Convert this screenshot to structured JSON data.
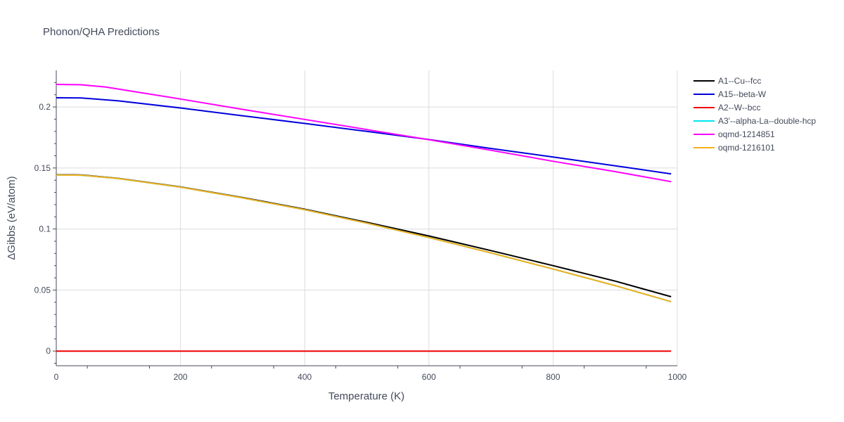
{
  "chart_data": {
    "type": "line",
    "title": "Phonon/QHA Predictions",
    "xlabel": "Temperature (K)",
    "ylabel": "ΔGibbs (eV/atom)",
    "xlim": [
      0,
      1000
    ],
    "ylim": [
      -0.012,
      0.23
    ],
    "x_ticks": [
      0,
      200,
      400,
      600,
      800,
      1000
    ],
    "y_ticks": [
      0,
      0.05,
      0.1,
      0.15,
      0.2
    ],
    "x_tick_labels": [
      "0",
      "200",
      "400",
      "600",
      "800",
      "1000"
    ],
    "y_tick_labels": [
      "0",
      "0.05",
      "0.1",
      "0.15",
      "0.2"
    ],
    "grid": true,
    "legend_position": "right",
    "series": [
      {
        "name": "A1--Cu--fcc",
        "color": "#000000",
        "x": [
          0,
          40,
          100,
          200,
          300,
          400,
          500,
          600,
          700,
          800,
          900,
          990
        ],
        "y": [
          0.1445,
          0.1443,
          0.1415,
          0.1345,
          0.1258,
          0.1162,
          0.1055,
          0.0943,
          0.0823,
          0.07,
          0.0573,
          0.0445
        ]
      },
      {
        "name": "A15--beta-W",
        "color": "#0000dd",
        "x": [
          0,
          40,
          100,
          200,
          300,
          400,
          500,
          600,
          700,
          800,
          900,
          990
        ],
        "y": [
          0.2075,
          0.2074,
          0.205,
          0.1992,
          0.1928,
          0.1865,
          0.18,
          0.1733,
          0.166,
          0.159,
          0.1518,
          0.1452
        ]
      },
      {
        "name": "A2--W--bcc",
        "color": "#ee0000",
        "x": [
          0,
          990
        ],
        "y": [
          0,
          0
        ]
      },
      {
        "name": "A3'--alpha-La--double-hcp",
        "color": "#00e5ee",
        "x": [
          0,
          40,
          100,
          200,
          300,
          400,
          500,
          600,
          700,
          800,
          900,
          990
        ],
        "y": [
          0.1443,
          0.1441,
          0.1413,
          0.1343,
          0.1255,
          0.1158,
          0.1048,
          0.093,
          0.0804,
          0.0672,
          0.0536,
          0.0405
        ]
      },
      {
        "name": "oqmd-1214851",
        "color": "#ff00ff",
        "x": [
          0,
          40,
          80,
          200,
          300,
          400,
          500,
          600,
          700,
          800,
          900,
          990
        ],
        "y": [
          0.2185,
          0.2182,
          0.2163,
          0.2065,
          0.198,
          0.1898,
          0.1815,
          0.1732,
          0.1645,
          0.1555,
          0.147,
          0.1388
        ]
      },
      {
        "name": "oqmd-1216101",
        "color": "#f2b01e",
        "x": [
          0,
          40,
          100,
          200,
          300,
          400,
          500,
          600,
          700,
          800,
          900,
          990
        ],
        "y": [
          0.1443,
          0.1441,
          0.1413,
          0.1343,
          0.1255,
          0.1158,
          0.1048,
          0.093,
          0.0804,
          0.0672,
          0.0536,
          0.0405
        ]
      }
    ]
  }
}
